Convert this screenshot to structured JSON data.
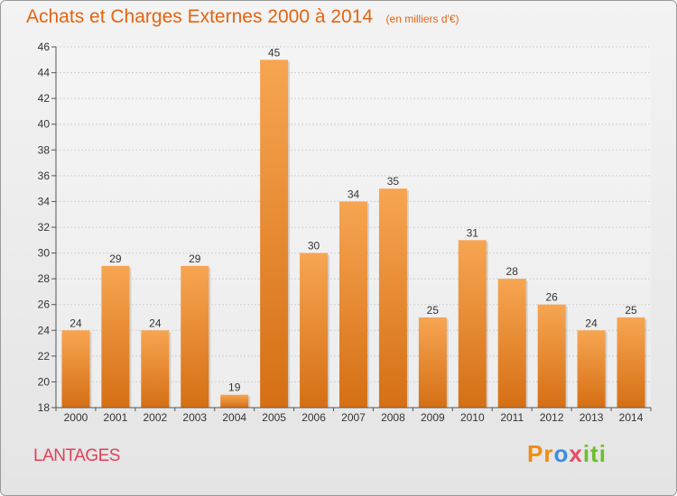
{
  "header": {
    "title": "Achats et Charges Externes 2000 à 2014",
    "subtitle": "(en milliers d'€)"
  },
  "commune": "LANTAGES",
  "logo": {
    "parts": [
      "Pr",
      "o",
      "x",
      "iti"
    ]
  },
  "colors": {
    "bar_light": "#f7a552",
    "bar_dark": "#d56f14",
    "title": "#e36410",
    "commune": "#e0405a"
  },
  "chart_data": {
    "type": "bar",
    "title": "Achats et Charges Externes 2000 à 2014",
    "subtitle": "(en milliers d'€)",
    "categories": [
      "2000",
      "2001",
      "2002",
      "2003",
      "2004",
      "2005",
      "2006",
      "2007",
      "2008",
      "2009",
      "2010",
      "2011",
      "2012",
      "2013",
      "2014"
    ],
    "values": [
      24,
      29,
      24,
      29,
      19,
      45,
      30,
      34,
      35,
      25,
      31,
      28,
      26,
      24,
      25
    ],
    "xlabel": "",
    "ylabel": "",
    "ylim": [
      18,
      46
    ],
    "yticks": [
      18,
      20,
      22,
      24,
      26,
      28,
      30,
      32,
      34,
      36,
      38,
      40,
      42,
      44,
      46
    ],
    "grid": true,
    "data_labels": true
  }
}
